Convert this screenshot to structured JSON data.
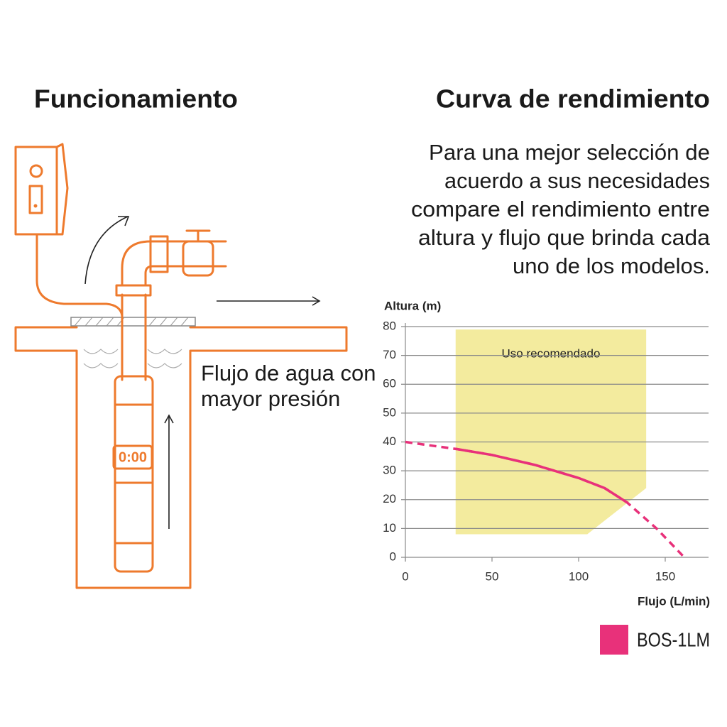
{
  "left": {
    "title": "Funcionamiento",
    "caption": [
      "Flujo de agua con",
      "mayor presión"
    ],
    "pump_display": "0:00"
  },
  "right": {
    "title": "Curva de rendimiento",
    "description": [
      "Para una mejor selección de",
      "acuerdo a sus necesidades",
      "compare el rendimiento entre",
      "altura y flujo que brinda cada",
      "uno de los modelos."
    ]
  },
  "chart_data": {
    "type": "line",
    "ylabel": "Altura (m)",
    "xlabel": "Flujo (L/min)",
    "x": [
      0,
      30,
      50,
      75,
      100,
      115,
      128,
      145,
      161
    ],
    "series": [
      {
        "name": "BOS-1LM",
        "color": "#e8317a",
        "values": [
          40,
          37.5,
          35.5,
          32,
          27.5,
          24,
          19,
          10,
          0
        ]
      }
    ],
    "xlim": [
      0,
      175
    ],
    "xticks": [
      0,
      50,
      100,
      150
    ],
    "ylim": [
      0,
      80
    ],
    "yticks": [
      0,
      10,
      20,
      30,
      40,
      50,
      60,
      70,
      80
    ],
    "grid": true,
    "region": {
      "label": "Uso recomendado",
      "color": "#f3eb9e",
      "x": [
        29,
        139,
        139,
        105,
        29
      ],
      "y": [
        79,
        79,
        24,
        8,
        8
      ]
    },
    "legend": "bottom-right"
  }
}
